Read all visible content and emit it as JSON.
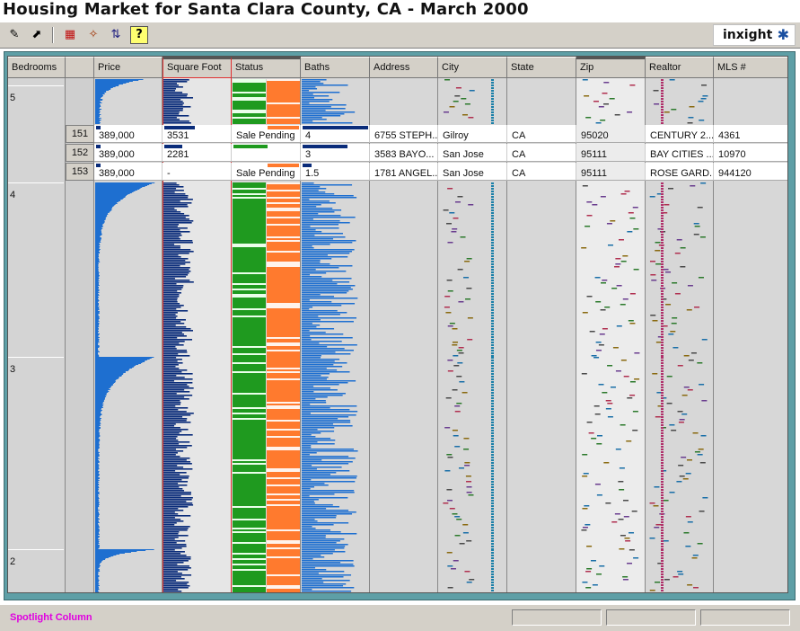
{
  "title": "Housing Market for Santa Clara County, CA - March 2000",
  "toolbar": {
    "buttons": [
      {
        "name": "pencil-tool-icon",
        "glyph": "✎",
        "color": "#7a5a00"
      },
      {
        "name": "select-tool-icon",
        "glyph": "⬈",
        "color": "#1a6a1a"
      },
      {
        "name": "grid-tool-icon",
        "glyph": "▦",
        "color": "#c01010"
      },
      {
        "name": "filter-tool-icon",
        "glyph": "✧",
        "color": "#a03000"
      },
      {
        "name": "sort-tool-icon",
        "glyph": "⇅",
        "color": "#202080"
      },
      {
        "name": "help-icon",
        "glyph": "?",
        "color": "#000000"
      }
    ],
    "logo": "inxight"
  },
  "columns": [
    "Bedrooms",
    "",
    "Price",
    "Square Foot",
    "Status",
    "Baths",
    "Address",
    "City",
    "State",
    "Zip",
    "Realtor",
    "MLS #"
  ],
  "groups": [
    "5",
    "4",
    "3",
    "2"
  ],
  "rows": [
    {
      "num": "151",
      "price": "389,000",
      "sqft": "3531",
      "status": "Sale Pending",
      "baths": "4",
      "address": "6755 STEPH...",
      "city": "Gilroy",
      "state": "CA",
      "zip": "95020",
      "realtor": "CENTURY 2...",
      "mls": "4361"
    },
    {
      "num": "152",
      "price": "389,000",
      "sqft": "2281",
      "status": "",
      "baths": "3",
      "address": "3583 BAYO...",
      "city": "San Jose",
      "state": "CA",
      "zip": "95111",
      "realtor": "BAY CITIES ...",
      "mls": "10970"
    },
    {
      "num": "153",
      "price": "389,000",
      "sqft": "-",
      "status": "Sale Pending",
      "baths": "1.5",
      "address": "1781 ANGEL...",
      "city": "San Jose",
      "state": "CA",
      "zip": "95111",
      "realtor": "ROSE GARD...",
      "mls": "944120"
    }
  ],
  "statusbar": {
    "text": "Spotlight Column"
  },
  "colors": {
    "dark_bar": "#0a2c7a",
    "blue_bar": "#1e6fd0",
    "green": "#1f9a1f",
    "orange": "#ff7a2e",
    "frame": "#5e9fa6"
  }
}
